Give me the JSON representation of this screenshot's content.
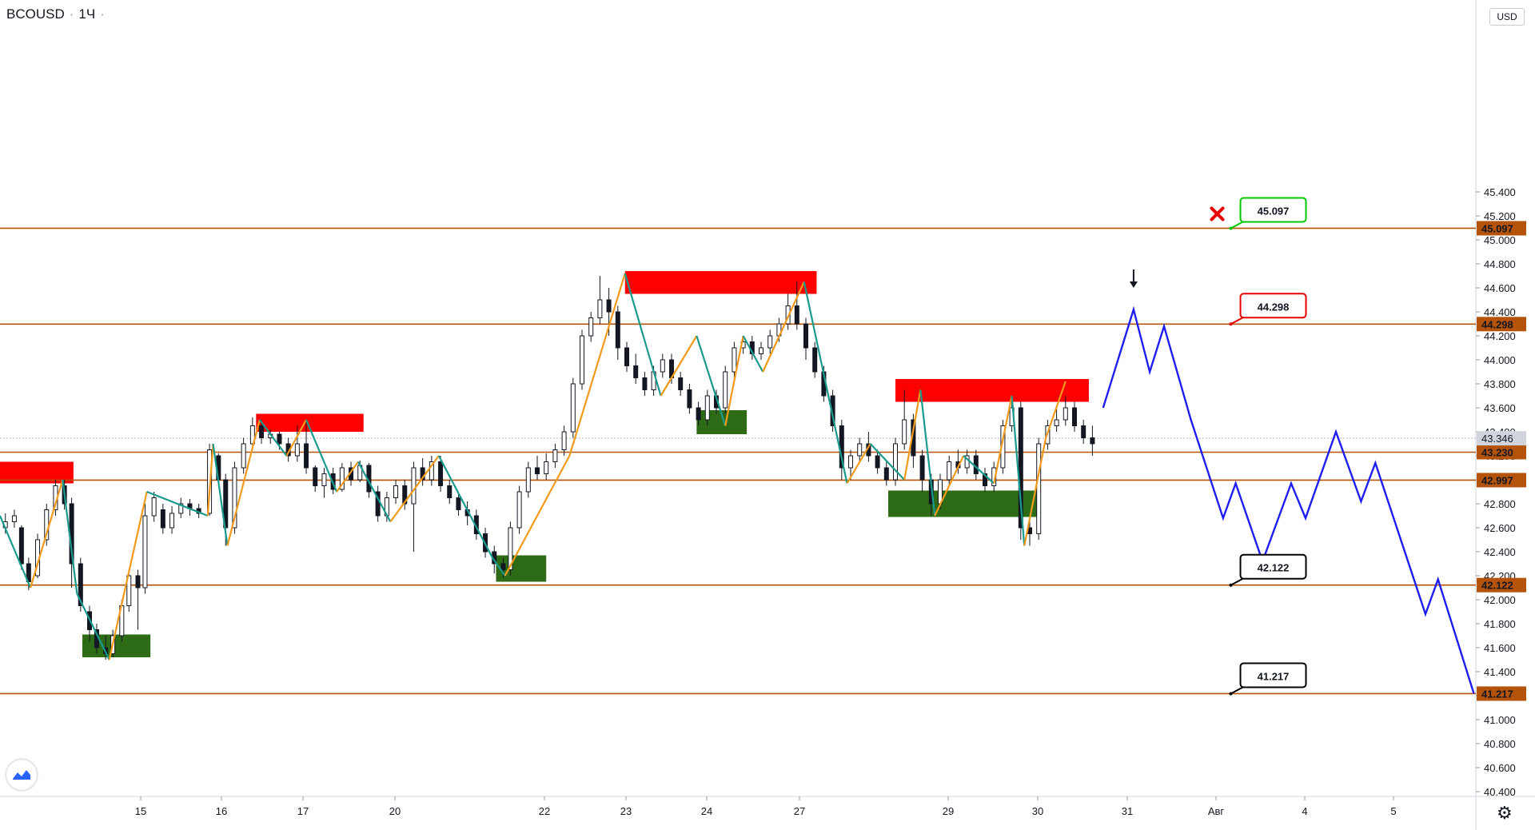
{
  "symbol": {
    "name": "BCOUSD",
    "interval": "1Ч"
  },
  "currency": "USD",
  "colors": {
    "level": "#b45309",
    "up": "#f29a1c",
    "down": "#199a8d",
    "forecast": "#1e1ef0",
    "resistance": "#ff0000",
    "support": "#2e6b16",
    "stop": "#00c800",
    "target1": "#e60000",
    "candle": "#131722",
    "level_label_bg": "#b45309"
  },
  "icons": {
    "cross": "close-icon",
    "arrow": "arrow-down-icon",
    "logo": "tradingview-logo-icon",
    "settings": "gear-icon"
  },
  "chart_data": {
    "type": "line",
    "title": "BCOUSD · 1Ч",
    "y_ticks": [
      "40.400",
      "40.600",
      "40.800",
      "41.000",
      "41.200",
      "41.400",
      "41.600",
      "41.800",
      "42.000",
      "42.200",
      "42.400",
      "42.600",
      "42.800",
      "43.000",
      "43.200",
      "43.400",
      "43.600",
      "43.800",
      "44.000",
      "44.200",
      "44.400",
      "44.600",
      "44.800",
      "45.000",
      "45.200",
      "45.400"
    ],
    "x_ticks": [
      "15",
      "16",
      "17",
      "20",
      "22",
      "23",
      "24",
      "27",
      "29",
      "30",
      "31",
      "Авг",
      "4",
      "5"
    ],
    "current_price": "43.346",
    "levels": [
      {
        "value": "45.097",
        "callout": "45.097",
        "role": "stop"
      },
      {
        "value": "44.298",
        "callout": "44.298",
        "role": "target-entry"
      },
      {
        "value": "43.230",
        "callout": "",
        "role": "level"
      },
      {
        "value": "42.997",
        "callout": "",
        "role": "level"
      },
      {
        "value": "42.122",
        "callout": "42.122",
        "role": "target"
      },
      {
        "value": "41.217",
        "callout": "41.217",
        "role": "target"
      }
    ],
    "zigzag_history": [
      {
        "t": 0,
        "y": 42.7
      },
      {
        "t": 1.7,
        "y": 42.1
      },
      {
        "t": 3.5,
        "y": 43.0
      },
      {
        "t": 4.3,
        "y": 42.05
      },
      {
        "t": 6.1,
        "y": 41.5
      },
      {
        "t": 8.2,
        "y": 42.9
      },
      {
        "t": 11.6,
        "y": 42.7
      },
      {
        "t": 11.9,
        "y": 43.3
      },
      {
        "t": 12.7,
        "y": 42.45
      },
      {
        "t": 14.5,
        "y": 43.5
      },
      {
        "t": 16.0,
        "y": 43.2
      },
      {
        "t": 17.1,
        "y": 43.5
      },
      {
        "t": 18.8,
        "y": 42.9
      },
      {
        "t": 20.0,
        "y": 43.15
      },
      {
        "t": 21.8,
        "y": 42.65
      },
      {
        "t": 24.5,
        "y": 43.2
      },
      {
        "t": 27.5,
        "y": 42.35
      },
      {
        "t": 28.2,
        "y": 42.2
      },
      {
        "t": 31.8,
        "y": 43.2
      },
      {
        "t": 34.9,
        "y": 44.72
      },
      {
        "t": 36.9,
        "y": 43.7
      },
      {
        "t": 38.9,
        "y": 44.2
      },
      {
        "t": 40.5,
        "y": 43.45
      },
      {
        "t": 41.5,
        "y": 44.2
      },
      {
        "t": 42.6,
        "y": 43.9
      },
      {
        "t": 44.9,
        "y": 44.65
      },
      {
        "t": 47.3,
        "y": 42.97
      },
      {
        "t": 48.6,
        "y": 43.3
      },
      {
        "t": 50.5,
        "y": 43.0
      },
      {
        "t": 51.4,
        "y": 43.75
      },
      {
        "t": 52.2,
        "y": 42.7
      },
      {
        "t": 53.8,
        "y": 43.2
      },
      {
        "t": 55.5,
        "y": 42.97
      },
      {
        "t": 56.5,
        "y": 43.7
      },
      {
        "t": 57.2,
        "y": 42.45
      },
      {
        "t": 58.4,
        "y": 43.35
      },
      {
        "t": 59.5,
        "y": 43.82
      }
    ],
    "forecast_path": [
      {
        "t": 61.6,
        "y": 43.6
      },
      {
        "t": 63.3,
        "y": 44.42
      },
      {
        "t": 64.2,
        "y": 43.9
      },
      {
        "t": 65.0,
        "y": 44.28
      },
      {
        "t": 66.5,
        "y": 43.5
      },
      {
        "t": 68.3,
        "y": 42.68
      },
      {
        "t": 69.0,
        "y": 42.97
      },
      {
        "t": 70.5,
        "y": 42.32
      },
      {
        "t": 72.1,
        "y": 42.97
      },
      {
        "t": 72.9,
        "y": 42.68
      },
      {
        "t": 74.6,
        "y": 43.4
      },
      {
        "t": 76.0,
        "y": 42.82
      },
      {
        "t": 76.8,
        "y": 43.14
      },
      {
        "t": 79.6,
        "y": 41.88
      },
      {
        "t": 80.3,
        "y": 42.17
      },
      {
        "t": 82.3,
        "y": 41.217
      }
    ],
    "resistance_zones": [
      {
        "t0": 0,
        "t1": 4.1,
        "y0": 42.97,
        "y1": 43.15
      },
      {
        "t0": 14.3,
        "t1": 20.3,
        "y0": 43.4,
        "y1": 43.55
      },
      {
        "t0": 34.9,
        "t1": 45.6,
        "y0": 44.55,
        "y1": 44.74
      },
      {
        "t0": 50.0,
        "t1": 60.8,
        "y0": 43.65,
        "y1": 43.84
      }
    ],
    "support_zones": [
      {
        "t0": 4.6,
        "t1": 8.4,
        "y0": 41.52,
        "y1": 41.71
      },
      {
        "t0": 27.7,
        "t1": 30.5,
        "y0": 42.15,
        "y1": 42.37
      },
      {
        "t0": 38.9,
        "t1": 41.7,
        "y0": 43.38,
        "y1": 43.58
      },
      {
        "t0": 49.6,
        "t1": 58.1,
        "y0": 42.69,
        "y1": 42.91
      }
    ],
    "candles": [
      {
        "t": 0.3,
        "o": 42.6,
        "c": 42.65,
        "h": 42.72,
        "l": 42.55
      },
      {
        "t": 0.8,
        "o": 42.65,
        "c": 42.7,
        "h": 42.75,
        "l": 42.6
      },
      {
        "t": 1.2,
        "o": 42.6,
        "c": 42.3,
        "h": 42.62,
        "l": 42.25
      },
      {
        "t": 1.6,
        "o": 42.3,
        "c": 42.15,
        "h": 42.35,
        "l": 42.08
      },
      {
        "t": 2.1,
        "o": 42.2,
        "c": 42.5,
        "h": 42.55,
        "l": 42.18
      },
      {
        "t": 2.6,
        "o": 42.5,
        "c": 42.75,
        "h": 42.8,
        "l": 42.45
      },
      {
        "t": 3.1,
        "o": 42.75,
        "c": 42.95,
        "h": 43.0,
        "l": 42.7
      },
      {
        "t": 3.6,
        "o": 42.95,
        "c": 42.8,
        "h": 43.0,
        "l": 42.75
      },
      {
        "t": 4.0,
        "o": 42.8,
        "c": 42.3,
        "h": 42.85,
        "l": 42.1
      },
      {
        "t": 4.5,
        "o": 42.3,
        "c": 41.95,
        "h": 42.35,
        "l": 41.9
      },
      {
        "t": 5.0,
        "o": 41.9,
        "c": 41.75,
        "h": 41.95,
        "l": 41.65
      },
      {
        "t": 5.4,
        "o": 41.75,
        "c": 41.6,
        "h": 41.8,
        "l": 41.55
      },
      {
        "t": 5.9,
        "o": 41.6,
        "c": 41.55,
        "h": 41.7,
        "l": 41.5
      },
      {
        "t": 6.3,
        "o": 41.55,
        "c": 41.7,
        "h": 41.75,
        "l": 41.52
      },
      {
        "t": 6.8,
        "o": 41.7,
        "c": 41.95,
        "h": 42.0,
        "l": 41.65
      },
      {
        "t": 7.2,
        "o": 41.95,
        "c": 42.2,
        "h": 42.25,
        "l": 41.9
      },
      {
        "t": 7.7,
        "o": 42.2,
        "c": 42.1,
        "h": 42.25,
        "l": 41.75
      },
      {
        "t": 8.1,
        "o": 42.1,
        "c": 42.7,
        "h": 42.8,
        "l": 42.05
      },
      {
        "t": 8.6,
        "o": 42.7,
        "c": 42.85,
        "h": 42.9,
        "l": 42.65
      },
      {
        "t": 9.1,
        "o": 42.75,
        "c": 42.6,
        "h": 42.8,
        "l": 42.55
      },
      {
        "t": 9.6,
        "o": 42.6,
        "c": 42.72,
        "h": 42.78,
        "l": 42.55
      },
      {
        "t": 10.1,
        "o": 42.72,
        "c": 42.8,
        "h": 42.85,
        "l": 42.68
      },
      {
        "t": 10.6,
        "o": 42.8,
        "c": 42.76,
        "h": 42.84,
        "l": 42.7
      },
      {
        "t": 11.1,
        "o": 42.76,
        "c": 42.72,
        "h": 42.8,
        "l": 42.68
      },
      {
        "t": 11.7,
        "o": 42.72,
        "c": 43.25,
        "h": 43.3,
        "l": 42.7
      },
      {
        "t": 12.2,
        "o": 43.2,
        "c": 43.0,
        "h": 43.22,
        "l": 42.95
      },
      {
        "t": 12.6,
        "o": 43.0,
        "c": 42.6,
        "h": 43.05,
        "l": 42.45
      },
      {
        "t": 13.1,
        "o": 42.6,
        "c": 43.1,
        "h": 43.15,
        "l": 42.55
      },
      {
        "t": 13.6,
        "o": 43.1,
        "c": 43.3,
        "h": 43.35,
        "l": 43.05
      },
      {
        "t": 14.1,
        "o": 43.3,
        "c": 43.45,
        "h": 43.52,
        "l": 43.25
      },
      {
        "t": 14.6,
        "o": 43.45,
        "c": 43.35,
        "h": 43.5,
        "l": 43.3
      },
      {
        "t": 15.1,
        "o": 43.35,
        "c": 43.38,
        "h": 43.42,
        "l": 43.3
      },
      {
        "t": 15.6,
        "o": 43.38,
        "c": 43.3,
        "h": 43.4,
        "l": 43.25
      },
      {
        "t": 16.1,
        "o": 43.3,
        "c": 43.2,
        "h": 43.35,
        "l": 43.15
      },
      {
        "t": 16.6,
        "o": 43.2,
        "c": 43.3,
        "h": 43.45,
        "l": 43.15
      },
      {
        "t": 17.1,
        "o": 43.3,
        "c": 43.1,
        "h": 43.5,
        "l": 43.05
      },
      {
        "t": 17.6,
        "o": 43.1,
        "c": 42.95,
        "h": 43.12,
        "l": 42.9
      },
      {
        "t": 18.1,
        "o": 42.95,
        "c": 43.05,
        "h": 43.1,
        "l": 42.85
      },
      {
        "t": 18.6,
        "o": 43.05,
        "c": 42.92,
        "h": 43.1,
        "l": 42.88
      },
      {
        "t": 19.1,
        "o": 42.92,
        "c": 43.1,
        "h": 43.14,
        "l": 42.9
      },
      {
        "t": 19.6,
        "o": 43.1,
        "c": 43.0,
        "h": 43.15,
        "l": 42.95
      },
      {
        "t": 20.1,
        "o": 43.0,
        "c": 43.12,
        "h": 43.16,
        "l": 42.98
      },
      {
        "t": 20.6,
        "o": 43.12,
        "c": 42.9,
        "h": 43.14,
        "l": 42.85
      },
      {
        "t": 21.1,
        "o": 42.9,
        "c": 42.7,
        "h": 42.95,
        "l": 42.65
      },
      {
        "t": 21.6,
        "o": 42.7,
        "c": 42.85,
        "h": 42.9,
        "l": 42.65
      },
      {
        "t": 22.1,
        "o": 42.85,
        "c": 42.95,
        "h": 43.0,
        "l": 42.8
      },
      {
        "t": 22.6,
        "o": 42.95,
        "c": 42.8,
        "h": 43.0,
        "l": 42.75
      },
      {
        "t": 23.1,
        "o": 42.8,
        "c": 43.1,
        "h": 43.15,
        "l": 42.4
      },
      {
        "t": 23.6,
        "o": 43.1,
        "c": 43.0,
        "h": 43.18,
        "l": 42.95
      },
      {
        "t": 24.1,
        "o": 43.0,
        "c": 43.15,
        "h": 43.2,
        "l": 42.95
      },
      {
        "t": 24.6,
        "o": 43.15,
        "c": 42.95,
        "h": 43.2,
        "l": 42.9
      },
      {
        "t": 25.1,
        "o": 42.95,
        "c": 42.85,
        "h": 43.0,
        "l": 42.8
      },
      {
        "t": 25.6,
        "o": 42.85,
        "c": 42.75,
        "h": 42.9,
        "l": 42.7
      },
      {
        "t": 26.1,
        "o": 42.75,
        "c": 42.7,
        "h": 42.82,
        "l": 42.62
      },
      {
        "t": 26.6,
        "o": 42.7,
        "c": 42.55,
        "h": 42.75,
        "l": 42.5
      },
      {
        "t": 27.1,
        "o": 42.55,
        "c": 42.4,
        "h": 42.6,
        "l": 42.35
      },
      {
        "t": 27.6,
        "o": 42.4,
        "c": 42.3,
        "h": 42.45,
        "l": 42.22
      },
      {
        "t": 28.1,
        "o": 42.3,
        "c": 42.25,
        "h": 42.35,
        "l": 42.18
      },
      {
        "t": 28.5,
        "o": 42.25,
        "c": 42.6,
        "h": 42.65,
        "l": 42.2
      },
      {
        "t": 29.0,
        "o": 42.6,
        "c": 42.9,
        "h": 42.95,
        "l": 42.55
      },
      {
        "t": 29.5,
        "o": 42.9,
        "c": 43.1,
        "h": 43.15,
        "l": 42.85
      },
      {
        "t": 30.0,
        "o": 43.1,
        "c": 43.05,
        "h": 43.2,
        "l": 43.0
      },
      {
        "t": 30.5,
        "o": 43.05,
        "c": 43.15,
        "h": 43.22,
        "l": 43.0
      },
      {
        "t": 31.0,
        "o": 43.15,
        "c": 43.25,
        "h": 43.3,
        "l": 43.1
      },
      {
        "t": 31.5,
        "o": 43.25,
        "c": 43.4,
        "h": 43.45,
        "l": 43.2
      },
      {
        "t": 32.0,
        "o": 43.4,
        "c": 43.8,
        "h": 43.85,
        "l": 43.35
      },
      {
        "t": 32.5,
        "o": 43.8,
        "c": 44.2,
        "h": 44.25,
        "l": 43.75
      },
      {
        "t": 33.0,
        "o": 44.2,
        "c": 44.35,
        "h": 44.4,
        "l": 44.15
      },
      {
        "t": 33.5,
        "o": 44.35,
        "c": 44.5,
        "h": 44.7,
        "l": 44.3
      },
      {
        "t": 34.0,
        "o": 44.5,
        "c": 44.4,
        "h": 44.6,
        "l": 44.2
      },
      {
        "t": 34.5,
        "o": 44.4,
        "c": 44.1,
        "h": 44.45,
        "l": 44.0
      },
      {
        "t": 35.0,
        "o": 44.1,
        "c": 43.95,
        "h": 44.15,
        "l": 43.9
      },
      {
        "t": 35.5,
        "o": 43.95,
        "c": 43.85,
        "h": 44.05,
        "l": 43.8
      },
      {
        "t": 36.0,
        "o": 43.85,
        "c": 43.75,
        "h": 43.9,
        "l": 43.7
      },
      {
        "t": 36.5,
        "o": 43.75,
        "c": 43.9,
        "h": 43.95,
        "l": 43.7
      },
      {
        "t": 37.0,
        "o": 43.9,
        "c": 44.0,
        "h": 44.05,
        "l": 43.85
      },
      {
        "t": 37.5,
        "o": 44.0,
        "c": 43.85,
        "h": 44.05,
        "l": 43.8
      },
      {
        "t": 38.0,
        "o": 43.85,
        "c": 43.75,
        "h": 43.9,
        "l": 43.7
      },
      {
        "t": 38.5,
        "o": 43.75,
        "c": 43.6,
        "h": 43.8,
        "l": 43.55
      },
      {
        "t": 39.0,
        "o": 43.6,
        "c": 43.5,
        "h": 43.65,
        "l": 43.45
      },
      {
        "t": 39.5,
        "o": 43.5,
        "c": 43.7,
        "h": 43.75,
        "l": 43.45
      },
      {
        "t": 40.0,
        "o": 43.7,
        "c": 43.6,
        "h": 43.75,
        "l": 43.55
      },
      {
        "t": 40.5,
        "o": 43.6,
        "c": 43.9,
        "h": 43.95,
        "l": 43.55
      },
      {
        "t": 41.0,
        "o": 43.9,
        "c": 44.1,
        "h": 44.15,
        "l": 43.85
      },
      {
        "t": 41.5,
        "o": 44.1,
        "c": 44.15,
        "h": 44.2,
        "l": 44.05
      },
      {
        "t": 42.0,
        "o": 44.15,
        "c": 44.05,
        "h": 44.2,
        "l": 44.0
      },
      {
        "t": 42.5,
        "o": 44.05,
        "c": 44.1,
        "h": 44.15,
        "l": 44.0
      },
      {
        "t": 43.0,
        "o": 44.1,
        "c": 44.2,
        "h": 44.25,
        "l": 44.05
      },
      {
        "t": 43.5,
        "o": 44.2,
        "c": 44.3,
        "h": 44.35,
        "l": 44.15
      },
      {
        "t": 44.0,
        "o": 44.3,
        "c": 44.45,
        "h": 44.55,
        "l": 44.25
      },
      {
        "t": 44.5,
        "o": 44.45,
        "c": 44.3,
        "h": 44.65,
        "l": 44.25
      },
      {
        "t": 45.0,
        "o": 44.3,
        "c": 44.1,
        "h": 44.35,
        "l": 44.0
      },
      {
        "t": 45.5,
        "o": 44.1,
        "c": 43.9,
        "h": 44.15,
        "l": 43.85
      },
      {
        "t": 46.0,
        "o": 43.9,
        "c": 43.7,
        "h": 43.95,
        "l": 43.65
      },
      {
        "t": 46.5,
        "o": 43.7,
        "c": 43.45,
        "h": 43.75,
        "l": 43.4
      },
      {
        "t": 47.0,
        "o": 43.45,
        "c": 43.1,
        "h": 43.5,
        "l": 43.0
      },
      {
        "t": 47.5,
        "o": 43.1,
        "c": 43.2,
        "h": 43.25,
        "l": 43.0
      },
      {
        "t": 48.0,
        "o": 43.2,
        "c": 43.3,
        "h": 43.35,
        "l": 43.15
      },
      {
        "t": 48.5,
        "o": 43.3,
        "c": 43.2,
        "h": 43.4,
        "l": 43.15
      },
      {
        "t": 49.0,
        "o": 43.2,
        "c": 43.1,
        "h": 43.25,
        "l": 43.05
      },
      {
        "t": 49.5,
        "o": 43.1,
        "c": 43.0,
        "h": 43.15,
        "l": 42.95
      },
      {
        "t": 50.0,
        "o": 43.0,
        "c": 43.3,
        "h": 43.35,
        "l": 42.95
      },
      {
        "t": 50.5,
        "o": 43.3,
        "c": 43.5,
        "h": 43.75,
        "l": 43.25
      },
      {
        "t": 51.0,
        "o": 43.5,
        "c": 43.2,
        "h": 43.55,
        "l": 43.1
      },
      {
        "t": 51.5,
        "o": 43.2,
        "c": 43.0,
        "h": 43.25,
        "l": 42.9
      },
      {
        "t": 52.0,
        "o": 43.0,
        "c": 42.8,
        "h": 43.05,
        "l": 42.7
      },
      {
        "t": 52.5,
        "o": 42.8,
        "c": 43.0,
        "h": 43.05,
        "l": 42.75
      },
      {
        "t": 53.0,
        "o": 43.0,
        "c": 43.15,
        "h": 43.2,
        "l": 42.95
      },
      {
        "t": 53.5,
        "o": 43.15,
        "c": 43.1,
        "h": 43.25,
        "l": 43.05
      },
      {
        "t": 54.0,
        "o": 43.1,
        "c": 43.2,
        "h": 43.25,
        "l": 43.05
      },
      {
        "t": 54.5,
        "o": 43.2,
        "c": 43.05,
        "h": 43.25,
        "l": 43.0
      },
      {
        "t": 55.0,
        "o": 43.05,
        "c": 42.95,
        "h": 43.1,
        "l": 42.9
      },
      {
        "t": 55.5,
        "o": 42.95,
        "c": 43.1,
        "h": 43.15,
        "l": 42.9
      },
      {
        "t": 56.0,
        "o": 43.1,
        "c": 43.45,
        "h": 43.5,
        "l": 43.05
      },
      {
        "t": 56.5,
        "o": 43.45,
        "c": 43.6,
        "h": 43.7,
        "l": 43.4
      },
      {
        "t": 57.0,
        "o": 43.6,
        "c": 42.6,
        "h": 43.65,
        "l": 42.5
      },
      {
        "t": 57.5,
        "o": 42.6,
        "c": 42.55,
        "h": 42.7,
        "l": 42.45
      },
      {
        "t": 58.0,
        "o": 42.55,
        "c": 43.3,
        "h": 43.35,
        "l": 42.5
      },
      {
        "t": 58.5,
        "o": 43.3,
        "c": 43.45,
        "h": 43.5,
        "l": 43.25
      },
      {
        "t": 59.0,
        "o": 43.45,
        "c": 43.5,
        "h": 43.6,
        "l": 43.4
      },
      {
        "t": 59.5,
        "o": 43.5,
        "c": 43.6,
        "h": 43.7,
        "l": 43.45
      },
      {
        "t": 60.0,
        "o": 43.6,
        "c": 43.45,
        "h": 43.65,
        "l": 43.4
      },
      {
        "t": 60.5,
        "o": 43.45,
        "c": 43.35,
        "h": 43.5,
        "l": 43.3
      },
      {
        "t": 61.0,
        "o": 43.35,
        "c": 43.3,
        "h": 43.45,
        "l": 43.2
      }
    ]
  }
}
